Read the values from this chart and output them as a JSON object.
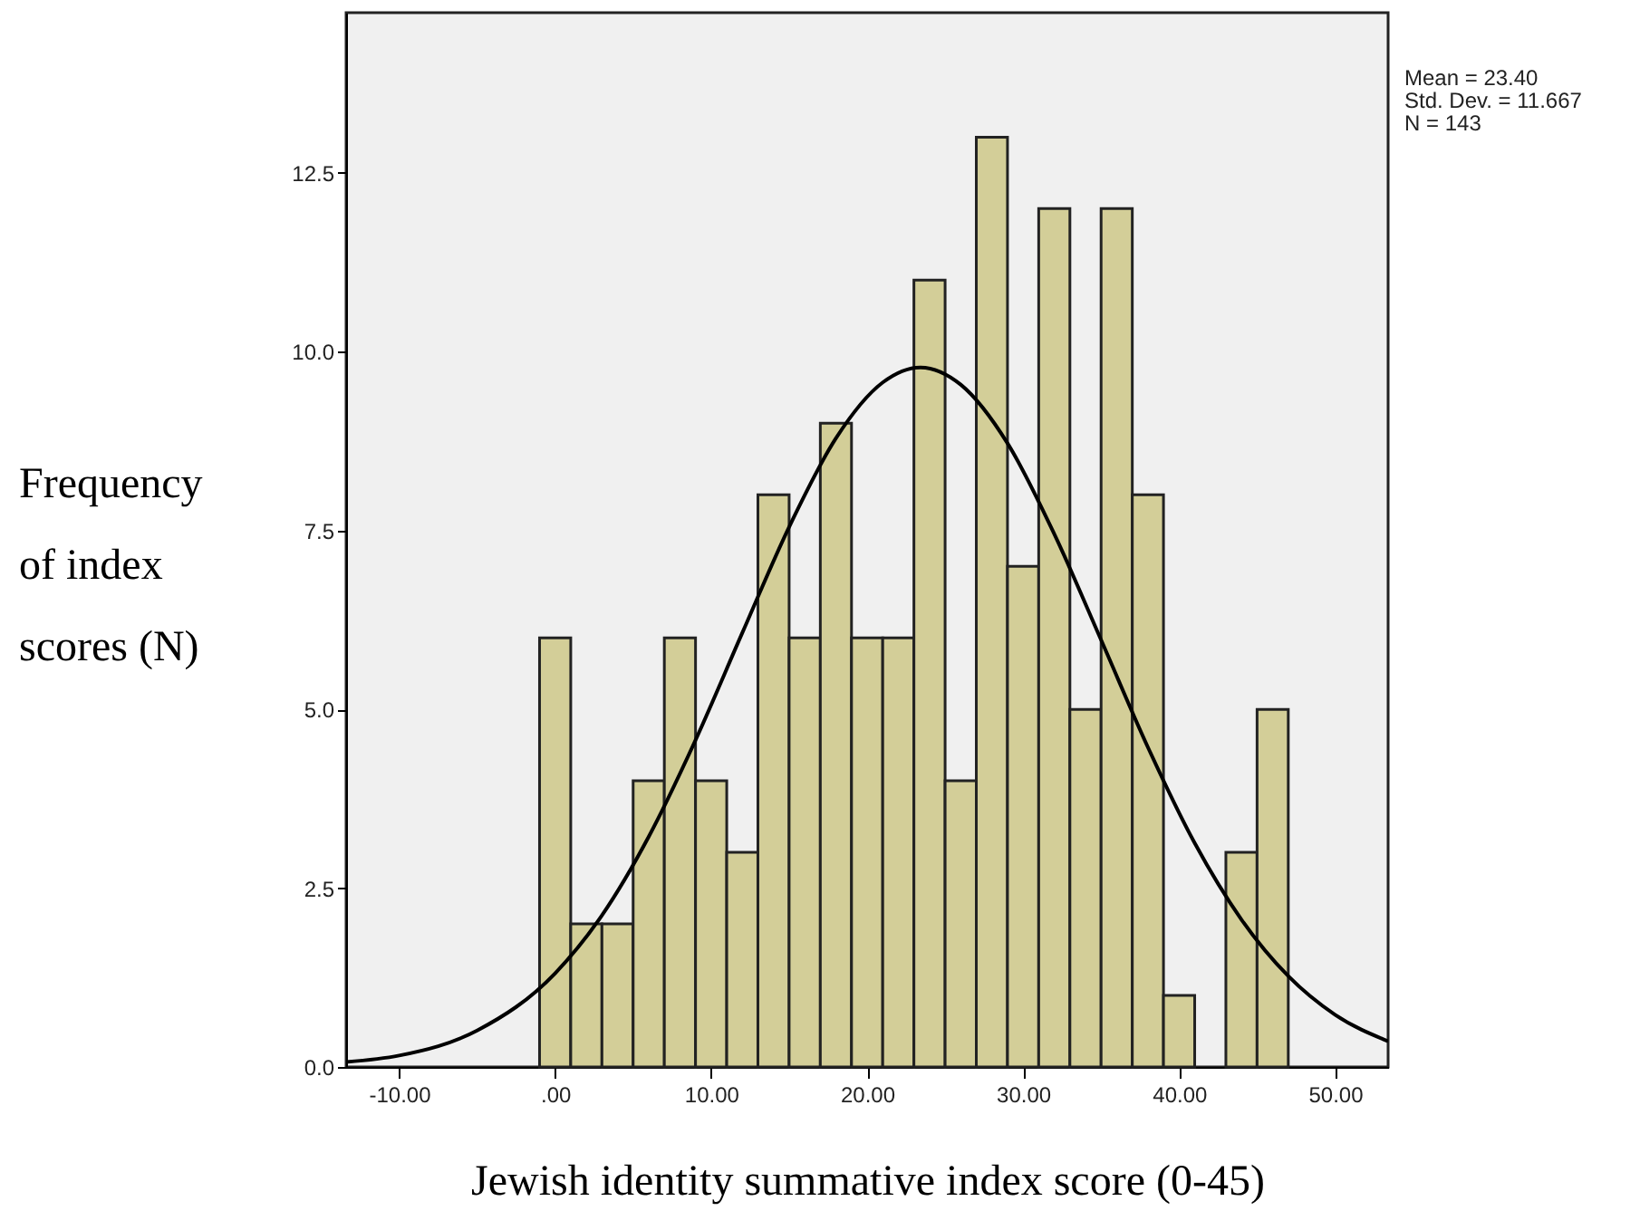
{
  "chart_data": {
    "type": "histogram",
    "xlabel": "Jewish identity summative index score (0-45)",
    "ylabel": "Frequency of index scores (N)",
    "bins": [
      -1,
      1,
      3,
      5,
      7,
      9,
      11,
      13,
      15,
      17,
      19,
      21,
      23,
      25,
      27,
      29,
      31,
      33,
      35,
      37,
      39,
      41,
      43,
      45,
      47
    ],
    "values": [
      6,
      2,
      2,
      4,
      6,
      4,
      3,
      8,
      6,
      9,
      6,
      6,
      11,
      4,
      13,
      7,
      12,
      5,
      12,
      8,
      1,
      0,
      3,
      5
    ],
    "color": "#d3ce98",
    "series": [
      {
        "type": "line",
        "color": "#000000",
        "x": [
          -13.4,
          -10,
          -5,
          0,
          3,
          6,
          9,
          12,
          15,
          18,
          21,
          23.4,
          26,
          29,
          32,
          35,
          38,
          41,
          44,
          47,
          50,
          53.4
        ],
        "values": [
          0.07,
          0.16,
          0.51,
          1.31,
          2.12,
          3.22,
          4.57,
          6.07,
          7.55,
          8.79,
          9.57,
          9.78,
          9.54,
          8.72,
          7.45,
          5.97,
          4.47,
          3.13,
          2.06,
          1.27,
          0.73,
          0.36
        ]
      }
    ],
    "xlim": [
      -13.4,
      53.4
    ],
    "xticks": [
      {
        "value": -10,
        "label": "-10.00"
      },
      {
        "value": 0,
        "label": ".00"
      },
      {
        "value": 10,
        "label": "10.00"
      },
      {
        "value": 20,
        "label": "20.00"
      },
      {
        "value": 30,
        "label": "30.00"
      },
      {
        "value": 40,
        "label": "40.00"
      },
      {
        "value": 50,
        "label": "50.00"
      }
    ],
    "ylim": [
      0,
      14.74
    ],
    "yticks": [
      {
        "value": 0,
        "label": "0.0"
      },
      2.5,
      {
        "value": 5,
        "label": "5.0"
      },
      {
        "value": 7.5,
        "label": "7.5"
      },
      {
        "value": 10,
        "label": "10.0"
      },
      12.5
    ],
    "annotations": [
      "Mean = 23.40",
      "Std. Dev. = 11.667",
      "N = 143"
    ],
    "grid": false
  }
}
